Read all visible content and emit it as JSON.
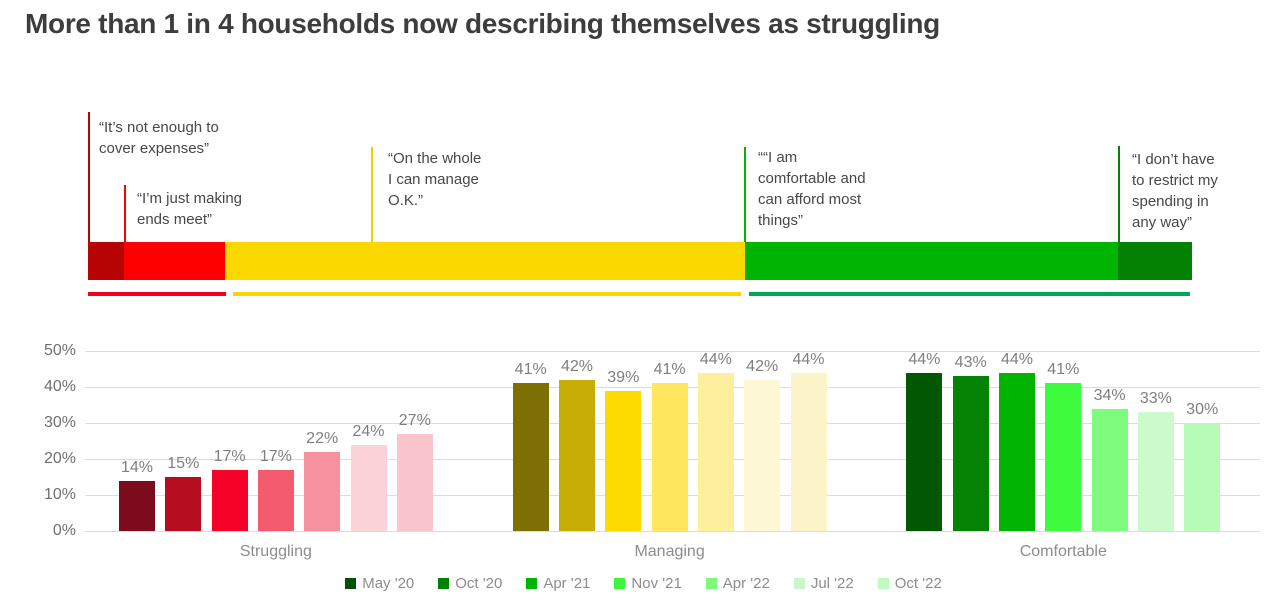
{
  "title": "More than 1 in 4 households now describing themselves as struggling",
  "band": {
    "segment_names": [
      "struggling-dark",
      "struggling",
      "managing",
      "comfortable",
      "comfortable-dark"
    ],
    "segment_colors": [
      "#b60404",
      "#fe0000",
      "#fbd800",
      "#02b402",
      "#028102"
    ],
    "vline_colors": [
      "#b60404",
      "#fe0000",
      "#ecd000",
      "#02b402",
      "#028102"
    ],
    "quotes": [
      "“It’s not enough to\ncover expenses”",
      "“I’m just making\nends meet”",
      "“On the whole\nI can manage\nO.K.”",
      "““I am\ncomfortable and\ncan afford most\nthings”",
      "“I don’t have\nto restrict my\nspending in\nany way”"
    ],
    "underline_colors": [
      "#f2001d",
      "#fcd405",
      "#00a651"
    ]
  },
  "chart_data": {
    "type": "bar",
    "title": "More than 1 in 4 households now describing themselves as struggling",
    "categories": [
      "Struggling",
      "Managing",
      "Comfortable"
    ],
    "series": [
      {
        "name": "May '20",
        "values": [
          14,
          41,
          44
        ]
      },
      {
        "name": "Oct '20",
        "values": [
          15,
          42,
          43
        ]
      },
      {
        "name": "Apr '21",
        "values": [
          17,
          39,
          44
        ]
      },
      {
        "name": "Nov '21",
        "values": [
          17,
          41,
          41
        ]
      },
      {
        "name": "Apr '22",
        "values": [
          22,
          44,
          34
        ]
      },
      {
        "name": "Jul '22",
        "values": [
          24,
          42,
          33
        ]
      },
      {
        "name": "Oct '22",
        "values": [
          27,
          44,
          30
        ]
      }
    ],
    "value_label_suffix": "%",
    "category_color_ramps": {
      "Struggling": [
        "#7b0b1d",
        "#b60d20",
        "#f40228",
        "#f55b6e",
        "#f8919e",
        "#fbd2d8",
        "#fac5cd"
      ],
      "Managing": [
        "#7e6f04",
        "#c8ad07",
        "#fedb00",
        "#fee75e",
        "#feef9c",
        "#fdf7d6",
        "#fdf3c9"
      ],
      "Comfortable": [
        "#025702",
        "#038203",
        "#02b402",
        "#3efb3e",
        "#7dfb7d",
        "#cdfacd",
        "#b6fcb6"
      ]
    },
    "legend_colors": [
      "#064f06",
      "#038103",
      "#02b402",
      "#3ef53e",
      "#7df87d",
      "#c9f7c9",
      "#c0fac0"
    ],
    "yticks": [
      0,
      10,
      20,
      30,
      40,
      50
    ],
    "ytick_labels": [
      "0%",
      "10%",
      "20%",
      "30%",
      "40%",
      "50%"
    ],
    "ylim": [
      0,
      50
    ],
    "grid": true,
    "legend_position": "bottom"
  }
}
